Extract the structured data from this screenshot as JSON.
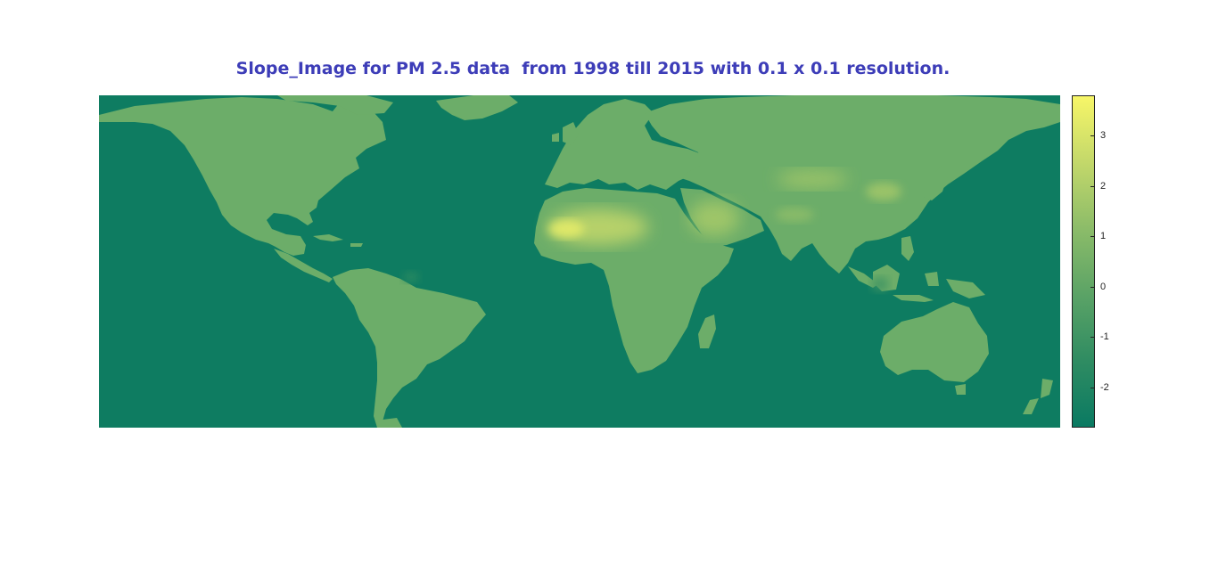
{
  "figure": {
    "title": "Slope_Image for PM 2.5 data  from 1998 till 2015 with 0.1 x 0.1 resolution.",
    "title_color": "#3d3db8"
  },
  "map": {
    "ocean_color": "#0e7c61",
    "land_color": "#6cad69",
    "extent": {
      "lon": [
        -180,
        180
      ],
      "lat": [
        -60,
        85
      ]
    },
    "hotspots": [
      {
        "region": "Sahara",
        "value": 2.5
      },
      {
        "region": "Arabian Peninsula",
        "value": 1.8
      },
      {
        "region": "Taklamakan / North China",
        "value": 1.7
      },
      {
        "region": "Indo-Gangetic Plain",
        "value": 1.2
      },
      {
        "region": "Amazon",
        "value": -1.5
      },
      {
        "region": "Borneo",
        "value": -1.0
      }
    ]
  },
  "colorbar": {
    "range": [
      -2.8,
      3.8
    ],
    "ticks": [
      {
        "value": 3,
        "label": "3"
      },
      {
        "value": 2,
        "label": "2"
      },
      {
        "value": 1,
        "label": "1"
      },
      {
        "value": 0,
        "label": "0"
      },
      {
        "value": -1,
        "label": "-1"
      },
      {
        "value": -2,
        "label": "-2"
      }
    ],
    "colormap": [
      "#0a7a62",
      "#2f8c62",
      "#5ba366",
      "#8cbc69",
      "#c3d86a",
      "#f7f668"
    ]
  }
}
